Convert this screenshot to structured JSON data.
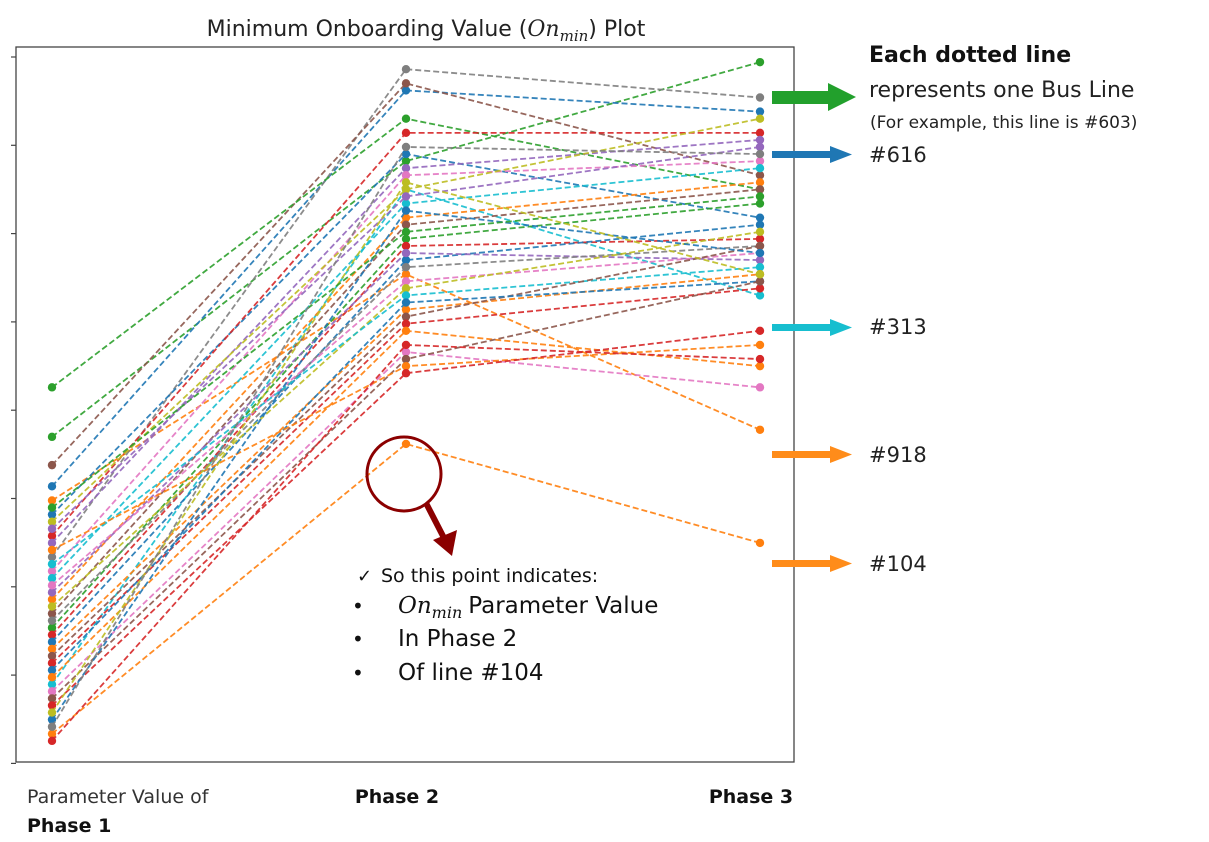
{
  "chart_data": {
    "type": "line",
    "title": {
      "prefix": "Minimum Onboarding Value (",
      "symbol": "On",
      "subscript": "min",
      "suffix": ") Plot"
    },
    "categories": [
      "Parameter Value of Phase 1",
      "Phase 2",
      "Phase 3"
    ],
    "xlabels": {
      "phase1_line1": "Parameter Value of",
      "phase1_line2": "Phase 1",
      "phase2": "Phase 2",
      "phase3": "Phase 3"
    },
    "ylabel": "",
    "ylim": [
      0,
      100
    ],
    "yticks_labeled": false,
    "series": [
      {
        "name": "#603",
        "color": "#2ca02c",
        "values": [
          45,
          84,
          98
        ]
      },
      {
        "name": "#616",
        "color": "#1f77b4",
        "values": [
          38,
          94,
          91
        ]
      },
      {
        "name": "#313",
        "color": "#17becf",
        "values": [
          10,
          80,
          65
        ]
      },
      {
        "name": "#918",
        "color": "#ff7f0e",
        "values": [
          36,
          68,
          46
        ]
      },
      {
        "name": "#104",
        "color": "#ff7f0e",
        "values": [
          3,
          44,
          30
        ]
      },
      {
        "name": "",
        "color": "#7f7f7f",
        "values": [
          28,
          97,
          93
        ]
      },
      {
        "name": "",
        "color": "#8c564b",
        "values": [
          41,
          95,
          82
        ]
      },
      {
        "name": "",
        "color": "#2ca02c",
        "values": [
          52,
          90,
          80
        ]
      },
      {
        "name": "",
        "color": "#1f77b4",
        "values": [
          34,
          85,
          76
        ]
      },
      {
        "name": "",
        "color": "#d62728",
        "values": [
          31,
          88,
          88
        ]
      },
      {
        "name": "",
        "color": "#9467bd",
        "values": [
          30,
          83,
          87
        ]
      },
      {
        "name": "",
        "color": "#e377c2",
        "values": [
          26,
          82,
          84
        ]
      },
      {
        "name": "",
        "color": "#bcbd22",
        "values": [
          33,
          80,
          90
        ]
      },
      {
        "name": "",
        "color": "#17becf",
        "values": [
          25,
          78,
          83
        ]
      },
      {
        "name": "",
        "color": "#ff7f0e",
        "values": [
          22,
          76,
          81
        ]
      },
      {
        "name": "",
        "color": "#8c564b",
        "values": [
          20,
          75,
          80
        ]
      },
      {
        "name": "",
        "color": "#2ca02c",
        "values": [
          18,
          73,
          78
        ]
      },
      {
        "name": "",
        "color": "#d62728",
        "values": [
          17,
          72,
          73
        ]
      },
      {
        "name": "",
        "color": "#1f77b4",
        "values": [
          16,
          70,
          75
        ]
      },
      {
        "name": "",
        "color": "#9467bd",
        "values": [
          23,
          71,
          70
        ]
      },
      {
        "name": "",
        "color": "#7f7f7f",
        "values": [
          19,
          69,
          72
        ]
      },
      {
        "name": "",
        "color": "#e377c2",
        "values": [
          24,
          67,
          71
        ]
      },
      {
        "name": "",
        "color": "#bcbd22",
        "values": [
          21,
          66,
          74
        ]
      },
      {
        "name": "",
        "color": "#17becf",
        "values": [
          27,
          65,
          69
        ]
      },
      {
        "name": "",
        "color": "#ff7f0e",
        "values": [
          15,
          63,
          68
        ]
      },
      {
        "name": "",
        "color": "#8c564b",
        "values": [
          14,
          62,
          72
        ]
      },
      {
        "name": "",
        "color": "#d62728",
        "values": [
          13,
          61,
          66
        ]
      },
      {
        "name": "",
        "color": "#1f77b4",
        "values": [
          12,
          64,
          67
        ]
      },
      {
        "name": "",
        "color": "#ff7f0e",
        "values": [
          11,
          60,
          55
        ]
      },
      {
        "name": "",
        "color": "#e377c2",
        "values": [
          9,
          57,
          52
        ]
      },
      {
        "name": "",
        "color": "#8c564b",
        "values": [
          8,
          56,
          67
        ]
      },
      {
        "name": "",
        "color": "#ff7f0e",
        "values": [
          29,
          55,
          58
        ]
      },
      {
        "name": "",
        "color": "#d62728",
        "values": [
          7,
          54,
          60
        ]
      },
      {
        "name": "",
        "color": "#d62728",
        "values": [
          2,
          58,
          56
        ]
      },
      {
        "name": "",
        "color": "#1f77b4",
        "values": [
          5,
          77,
          71
        ]
      },
      {
        "name": "",
        "color": "#9467bd",
        "values": [
          32,
          79,
          86
        ]
      },
      {
        "name": "",
        "color": "#bcbd22",
        "values": [
          6,
          81,
          68
        ]
      },
      {
        "name": "",
        "color": "#2ca02c",
        "values": [
          35,
          74,
          79
        ]
      },
      {
        "name": "",
        "color": "#7f7f7f",
        "values": [
          4,
          86,
          85
        ]
      }
    ],
    "highlight_point": {
      "series": "#104",
      "category": "Phase 2"
    }
  },
  "annotations": {
    "legend_heading": "Each dotted line",
    "legend_line2": "represents one Bus Line",
    "legend_line3": "(For example, this line is #603)",
    "callout_616": "#616",
    "callout_313": "#313",
    "callout_918": "#918",
    "callout_104": "#104",
    "note_title": "So this point indicates:",
    "note_check": "✓",
    "note_bullet": "•",
    "note_item1_symbol": "On",
    "note_item1_sub": "min",
    "note_item1_rest": "Parameter Value",
    "note_item2": "In Phase 2",
    "note_item3": "Of line #104"
  },
  "colors": {
    "green_arrow": "#22a02c",
    "blue_arrow": "#1f77b4",
    "cyan_arrow": "#17becf",
    "orange_arrow": "#ff8c1a",
    "circle": "#8b0000"
  }
}
